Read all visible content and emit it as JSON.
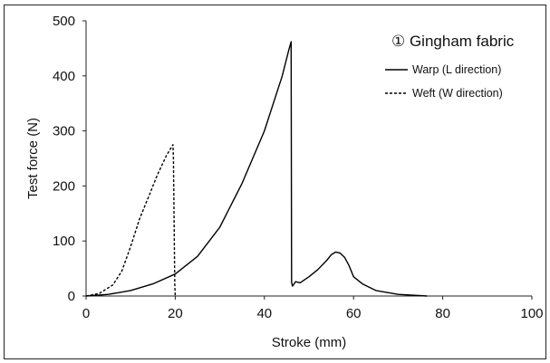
{
  "chart_data": {
    "type": "line",
    "title": "",
    "xlabel": "Stroke (mm)",
    "ylabel": "Test force (N)",
    "xlim": [
      0,
      100
    ],
    "ylim": [
      0,
      500
    ],
    "xticks": [
      "0",
      "20",
      "40",
      "60",
      "80",
      "100"
    ],
    "yticks": [
      "0",
      "100",
      "200",
      "300",
      "400",
      "500"
    ],
    "grid": false,
    "legend_position": "top-right",
    "legend_title": "① Gingham fabric",
    "series": [
      {
        "name": "Warp (L direction)",
        "style": "solid",
        "color": "#000000",
        "x": [
          0,
          5,
          10,
          15,
          20,
          25,
          30,
          35,
          40,
          44,
          45.5,
          46,
          46.1,
          46.3,
          47,
          48,
          50,
          52,
          54,
          55,
          56,
          57,
          58,
          59,
          60,
          62,
          65,
          70,
          76.5
        ],
        "y": [
          0,
          3,
          10,
          22,
          40,
          72,
          125,
          205,
          300,
          400,
          448,
          462,
          25,
          18,
          26,
          24,
          35,
          48,
          65,
          75,
          80,
          78,
          70,
          55,
          35,
          22,
          10,
          3,
          0
        ]
      },
      {
        "name": "Weft (W direction)",
        "style": "dashed",
        "color": "#000000",
        "x": [
          0,
          3,
          6,
          8,
          10,
          12,
          14,
          16,
          18,
          19.5,
          19.6,
          19.9,
          20
        ],
        "y": [
          0,
          5,
          20,
          45,
          90,
          140,
          180,
          220,
          255,
          275,
          250,
          20,
          0
        ]
      }
    ]
  }
}
